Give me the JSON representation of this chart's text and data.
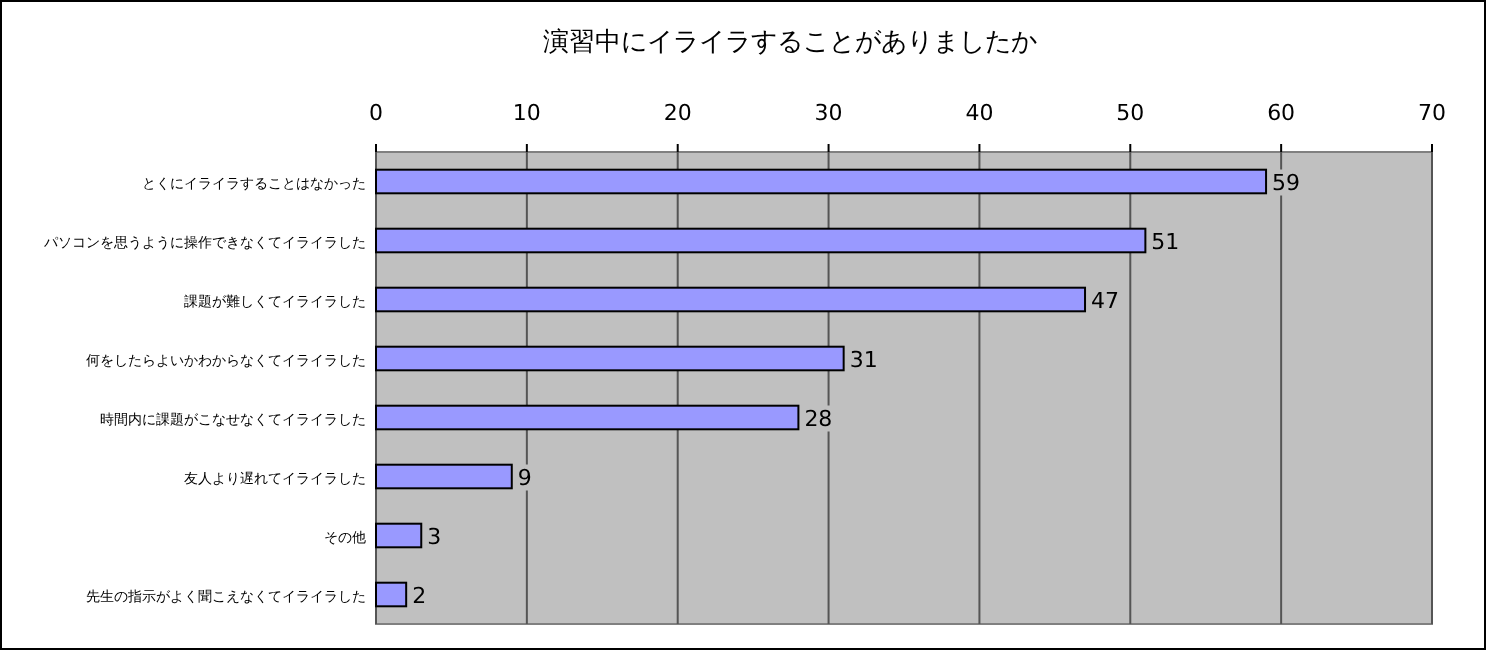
{
  "chart_data": {
    "type": "bar",
    "orientation": "horizontal",
    "title": "演習中にイライラすることがありましたか",
    "categories": [
      "とくにイライラすることはなかった",
      "パソコンを思うように操作できなくてイライラした",
      "課題が難しくてイライラした",
      "何をしたらよいかわからなくてイライラした",
      "時間内に課題がこなせなくてイライラした",
      "友人より遅れてイライラした",
      "その他",
      "先生の指示がよく聞こえなくてイライラした"
    ],
    "values": [
      59,
      51,
      47,
      31,
      28,
      9,
      3,
      2
    ],
    "color": "#9999ff",
    "xlim": [
      0,
      70
    ],
    "xticks": [
      0,
      10,
      20,
      30,
      40,
      50,
      60,
      70
    ],
    "grid": "x",
    "data_labels": true
  }
}
